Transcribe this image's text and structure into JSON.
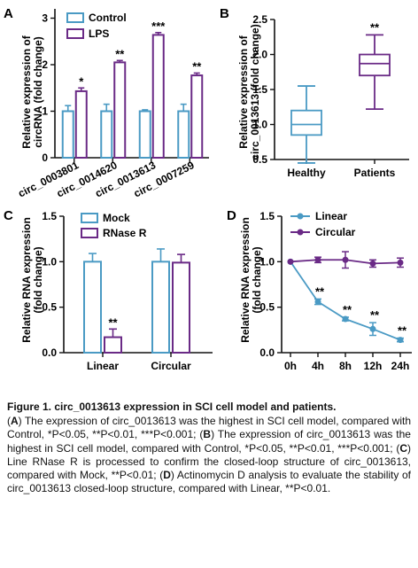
{
  "colors": {
    "teal": "#4a9ac4",
    "purple": "#6a2a86",
    "axis": "#111111"
  },
  "charts": {
    "A": {
      "letter": "A",
      "ylabel1": "Relative expression of",
      "ylabel2": "circRNA (fold change)",
      "ticks": [
        "0",
        "1",
        "2",
        "3"
      ],
      "legend": [
        "Control",
        "LPS"
      ],
      "categories": [
        "circ_0003801",
        "circ_0014620",
        "circ_0013613",
        "circ_0007259"
      ],
      "sig": [
        "*",
        "**",
        "***",
        "**"
      ]
    },
    "B": {
      "letter": "B",
      "ylabel1": "Relative expression of",
      "ylabel2": "circ_0013613 (fold change)",
      "ticks": [
        "0.5",
        "1.0",
        "1.5",
        "2.0",
        "2.5"
      ],
      "categories": [
        "Healthy",
        "Patients"
      ],
      "sig": "**"
    },
    "C": {
      "letter": "C",
      "ylabel1": "Relative RNA expression",
      "ylabel2": "(fold change)",
      "ticks": [
        "0.0",
        "0.5",
        "1.0",
        "1.5"
      ],
      "legend": [
        "Mock",
        "RNase R"
      ],
      "categories": [
        "Linear",
        "Circular"
      ],
      "sig": "**"
    },
    "D": {
      "letter": "D",
      "ylabel1": "Relative RNA expression",
      "ylabel2": "(fold change)",
      "ticks": [
        "0.0",
        "0.5",
        "1.0",
        "1.5"
      ],
      "legend": [
        "Linear",
        "Circular"
      ],
      "categories": [
        "0h",
        "4h",
        "8h",
        "12h",
        "24h"
      ],
      "sig": "**"
    }
  },
  "chart_data": [
    {
      "type": "bar",
      "panel": "A",
      "categories": [
        "circ_0003801",
        "circ_0014620",
        "circ_0013613",
        "circ_0007259"
      ],
      "series": [
        {
          "name": "Control",
          "values": [
            1.0,
            1.0,
            1.0,
            1.0
          ],
          "errors": [
            0.12,
            0.15,
            0.03,
            0.15
          ]
        },
        {
          "name": "LPS",
          "values": [
            1.43,
            2.05,
            2.64,
            1.77
          ],
          "errors": [
            0.07,
            0.04,
            0.05,
            0.05
          ]
        }
      ],
      "ylabel": "Relative expression of circRNA (fold change)",
      "ylim": [
        0,
        3.2
      ],
      "ticks": [
        0,
        1,
        2,
        3
      ],
      "significance": [
        "*",
        "**",
        "***",
        "**"
      ]
    },
    {
      "type": "box",
      "panel": "B",
      "categories": [
        "Healthy",
        "Patients"
      ],
      "boxes": [
        {
          "name": "Healthy",
          "min": 0.45,
          "q1": 0.85,
          "median": 1.0,
          "q3": 1.2,
          "max": 1.55
        },
        {
          "name": "Patients",
          "min": 1.22,
          "q1": 1.7,
          "median": 1.87,
          "q3": 2.0,
          "max": 2.28
        }
      ],
      "ylabel": "Relative expression of circ_0013613 (fold change)",
      "ylim": [
        0.5,
        2.5
      ],
      "ticks": [
        0.5,
        1.0,
        1.5,
        2.0,
        2.5
      ],
      "significance": [
        "",
        "**"
      ]
    },
    {
      "type": "bar",
      "panel": "C",
      "categories": [
        "Linear",
        "Circular"
      ],
      "series": [
        {
          "name": "Mock",
          "values": [
            1.0,
            1.0
          ],
          "errors": [
            0.09,
            0.14
          ]
        },
        {
          "name": "RNase R",
          "values": [
            0.17,
            0.99
          ],
          "errors": [
            0.09,
            0.09
          ]
        }
      ],
      "ylabel": "Relative RNA expression (fold change)",
      "ylim": [
        0,
        1.5
      ],
      "ticks": [
        0,
        0.5,
        1.0,
        1.5
      ],
      "significance": [
        "**",
        ""
      ]
    },
    {
      "type": "line",
      "panel": "D",
      "x": [
        "0h",
        "4h",
        "8h",
        "12h",
        "24h"
      ],
      "series": [
        {
          "name": "Linear",
          "values": [
            1.0,
            0.56,
            0.37,
            0.26,
            0.14
          ],
          "errors": [
            0.0,
            0.03,
            0.02,
            0.07,
            0.02
          ]
        },
        {
          "name": "Circular",
          "values": [
            1.0,
            1.02,
            1.02,
            0.98,
            0.99
          ],
          "errors": [
            0.0,
            0.03,
            0.09,
            0.04,
            0.05
          ]
        }
      ],
      "ylabel": "Relative RNA expression (fold change)",
      "ylim": [
        0,
        1.5
      ],
      "ticks": [
        0,
        0.5,
        1.0,
        1.5
      ],
      "significance": [
        "",
        "**",
        "**",
        "**",
        "**"
      ]
    }
  ],
  "caption": {
    "title": "Figure 1. circ_0013613 expression in SCI cell model and patients.",
    "A_label": "A",
    "A_text": "The expression of circ_0013613 was the highest in SCI cell model, compared with Control, *P<0.05, **P<0.01, ***P<0.001;",
    "B_label": "B",
    "B_text": "The expression of circ_0013613 was the highest in SCI cell model, compared with Control, *P<0.05, **P<0.01, ***P<0.001;",
    "C_label": "C",
    "C_text": "Line RNase R is processed to confirm the closed-loop structure of circ_0013613, compared with Mock, **P<0.01;",
    "D_label": "D",
    "D_text": "Actinomycin D analysis to evaluate the stability of circ_0013613 closed-loop structure, compared with Linear, **P<0.01."
  }
}
